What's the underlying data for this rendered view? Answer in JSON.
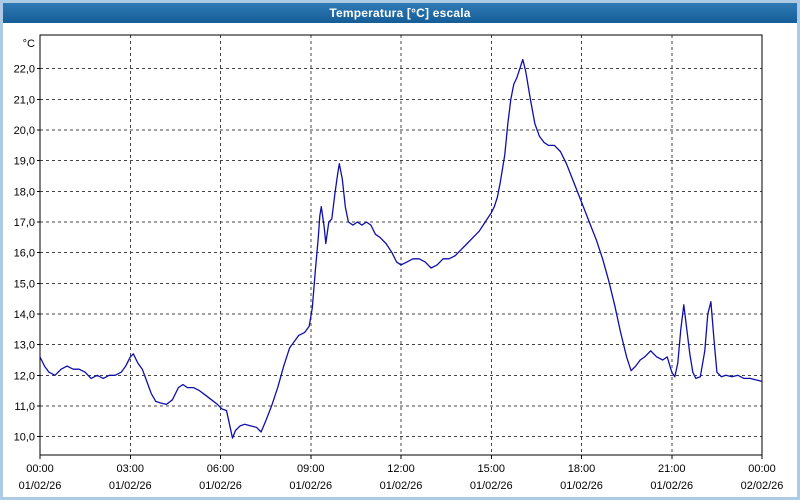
{
  "window": {
    "title": "Temperatura [°C] escala"
  },
  "colors": {
    "titlebar": "#1B6AA5",
    "frame": "#AECBE6",
    "plot_bg": "#FFFFFF",
    "grid": "#444444",
    "axis": "#000000",
    "line": "#0F0FA8",
    "text": "#000000"
  },
  "chart_data": {
    "type": "line",
    "title": "Temperatura [°C] escala",
    "xlabel": "",
    "ylabel": "°C",
    "xlim": [
      0,
      24
    ],
    "ylim": [
      9.4,
      23.1
    ],
    "grid": "dashed",
    "legend_position": "none",
    "y_ticks": [
      {
        "v": 22,
        "label": "22,0"
      },
      {
        "v": 21,
        "label": "21,0"
      },
      {
        "v": 20,
        "label": "20,0"
      },
      {
        "v": 19,
        "label": "19,0"
      },
      {
        "v": 18,
        "label": "18,0"
      },
      {
        "v": 17,
        "label": "17,0"
      },
      {
        "v": 16,
        "label": "16,0"
      },
      {
        "v": 15,
        "label": "15,0"
      },
      {
        "v": 14,
        "label": "14,0"
      },
      {
        "v": 13,
        "label": "13,0"
      },
      {
        "v": 12,
        "label": "12,0"
      },
      {
        "v": 11,
        "label": "11,0"
      },
      {
        "v": 10,
        "label": "10,0"
      }
    ],
    "x_ticks": [
      {
        "h": 0,
        "time": "00:00",
        "date": "01/02/26"
      },
      {
        "h": 3,
        "time": "03:00",
        "date": "01/02/26"
      },
      {
        "h": 6,
        "time": "06:00",
        "date": "01/02/26"
      },
      {
        "h": 9,
        "time": "09:00",
        "date": "01/02/26"
      },
      {
        "h": 12,
        "time": "12:00",
        "date": "01/02/26"
      },
      {
        "h": 15,
        "time": "15:00",
        "date": "01/02/26"
      },
      {
        "h": 18,
        "time": "18:00",
        "date": "01/02/26"
      },
      {
        "h": 21,
        "time": "21:00",
        "date": "01/02/26"
      },
      {
        "h": 24,
        "time": "00:00",
        "date": "02/02/26"
      }
    ],
    "series": [
      {
        "name": "Temperatura",
        "color": "#0F0FA8",
        "points": [
          [
            0,
            12.6
          ],
          [
            0.15,
            12.3
          ],
          [
            0.3,
            12.1
          ],
          [
            0.5,
            12.0
          ],
          [
            0.7,
            12.2
          ],
          [
            0.9,
            12.3
          ],
          [
            1.1,
            12.2
          ],
          [
            1.3,
            12.2
          ],
          [
            1.5,
            12.1
          ],
          [
            1.7,
            11.9
          ],
          [
            1.9,
            12.0
          ],
          [
            2.1,
            11.9
          ],
          [
            2.3,
            12.0
          ],
          [
            2.5,
            12.0
          ],
          [
            2.7,
            12.1
          ],
          [
            2.85,
            12.3
          ],
          [
            3.0,
            12.6
          ],
          [
            3.1,
            12.7
          ],
          [
            3.25,
            12.4
          ],
          [
            3.4,
            12.2
          ],
          [
            3.55,
            11.8
          ],
          [
            3.7,
            11.4
          ],
          [
            3.85,
            11.15
          ],
          [
            4.0,
            11.1
          ],
          [
            4.2,
            11.05
          ],
          [
            4.4,
            11.2
          ],
          [
            4.6,
            11.6
          ],
          [
            4.75,
            11.7
          ],
          [
            4.9,
            11.6
          ],
          [
            5.1,
            11.6
          ],
          [
            5.3,
            11.5
          ],
          [
            5.5,
            11.35
          ],
          [
            5.7,
            11.2
          ],
          [
            5.9,
            11.05
          ],
          [
            6.05,
            10.9
          ],
          [
            6.2,
            10.85
          ],
          [
            6.3,
            10.4
          ],
          [
            6.4,
            9.95
          ],
          [
            6.5,
            10.2
          ],
          [
            6.65,
            10.35
          ],
          [
            6.8,
            10.4
          ],
          [
            7.0,
            10.35
          ],
          [
            7.2,
            10.3
          ],
          [
            7.35,
            10.15
          ],
          [
            7.5,
            10.5
          ],
          [
            7.7,
            11.0
          ],
          [
            7.9,
            11.6
          ],
          [
            8.1,
            12.3
          ],
          [
            8.3,
            12.9
          ],
          [
            8.45,
            13.1
          ],
          [
            8.6,
            13.3
          ],
          [
            8.8,
            13.4
          ],
          [
            8.95,
            13.6
          ],
          [
            9.05,
            14.2
          ],
          [
            9.15,
            15.4
          ],
          [
            9.25,
            16.5
          ],
          [
            9.3,
            17.2
          ],
          [
            9.35,
            17.5
          ],
          [
            9.45,
            16.8
          ],
          [
            9.5,
            16.3
          ],
          [
            9.6,
            17.0
          ],
          [
            9.7,
            17.1
          ],
          [
            9.8,
            17.9
          ],
          [
            9.9,
            18.6
          ],
          [
            9.95,
            18.9
          ],
          [
            10.05,
            18.4
          ],
          [
            10.15,
            17.5
          ],
          [
            10.25,
            17.0
          ],
          [
            10.4,
            16.9
          ],
          [
            10.55,
            17.0
          ],
          [
            10.7,
            16.9
          ],
          [
            10.85,
            17.0
          ],
          [
            11.0,
            16.9
          ],
          [
            11.15,
            16.6
          ],
          [
            11.3,
            16.5
          ],
          [
            11.5,
            16.3
          ],
          [
            11.7,
            16.0
          ],
          [
            11.85,
            15.7
          ],
          [
            12.0,
            15.6
          ],
          [
            12.2,
            15.7
          ],
          [
            12.4,
            15.8
          ],
          [
            12.6,
            15.8
          ],
          [
            12.8,
            15.7
          ],
          [
            13.0,
            15.5
          ],
          [
            13.2,
            15.6
          ],
          [
            13.4,
            15.8
          ],
          [
            13.6,
            15.8
          ],
          [
            13.8,
            15.9
          ],
          [
            14.0,
            16.1
          ],
          [
            14.2,
            16.3
          ],
          [
            14.4,
            16.5
          ],
          [
            14.6,
            16.7
          ],
          [
            14.8,
            17.0
          ],
          [
            15.0,
            17.3
          ],
          [
            15.1,
            17.5
          ],
          [
            15.2,
            17.8
          ],
          [
            15.3,
            18.3
          ],
          [
            15.45,
            19.2
          ],
          [
            15.55,
            20.2
          ],
          [
            15.65,
            21.0
          ],
          [
            15.75,
            21.5
          ],
          [
            15.85,
            21.7
          ],
          [
            15.95,
            22.0
          ],
          [
            16.05,
            22.3
          ],
          [
            16.15,
            21.9
          ],
          [
            16.3,
            21.0
          ],
          [
            16.45,
            20.2
          ],
          [
            16.6,
            19.8
          ],
          [
            16.75,
            19.6
          ],
          [
            16.9,
            19.5
          ],
          [
            17.1,
            19.5
          ],
          [
            17.3,
            19.3
          ],
          [
            17.5,
            18.9
          ],
          [
            17.7,
            18.4
          ],
          [
            17.9,
            17.9
          ],
          [
            18.1,
            17.4
          ],
          [
            18.3,
            16.9
          ],
          [
            18.5,
            16.4
          ],
          [
            18.7,
            15.8
          ],
          [
            18.9,
            15.1
          ],
          [
            19.1,
            14.3
          ],
          [
            19.3,
            13.4
          ],
          [
            19.5,
            12.6
          ],
          [
            19.65,
            12.15
          ],
          [
            19.8,
            12.3
          ],
          [
            19.95,
            12.5
          ],
          [
            20.1,
            12.6
          ],
          [
            20.3,
            12.8
          ],
          [
            20.5,
            12.6
          ],
          [
            20.7,
            12.5
          ],
          [
            20.85,
            12.6
          ],
          [
            21.0,
            12.1
          ],
          [
            21.1,
            11.95
          ],
          [
            21.2,
            12.4
          ],
          [
            21.3,
            13.5
          ],
          [
            21.4,
            14.3
          ],
          [
            21.5,
            13.5
          ],
          [
            21.6,
            12.7
          ],
          [
            21.7,
            12.1
          ],
          [
            21.8,
            11.9
          ],
          [
            21.95,
            11.95
          ],
          [
            22.1,
            12.8
          ],
          [
            22.2,
            14.0
          ],
          [
            22.3,
            14.4
          ],
          [
            22.4,
            13.2
          ],
          [
            22.5,
            12.1
          ],
          [
            22.65,
            11.95
          ],
          [
            22.8,
            12.0
          ],
          [
            23.0,
            11.95
          ],
          [
            23.2,
            12.0
          ],
          [
            23.4,
            11.9
          ],
          [
            23.6,
            11.9
          ],
          [
            23.8,
            11.85
          ],
          [
            24.0,
            11.8
          ]
        ]
      }
    ]
  }
}
